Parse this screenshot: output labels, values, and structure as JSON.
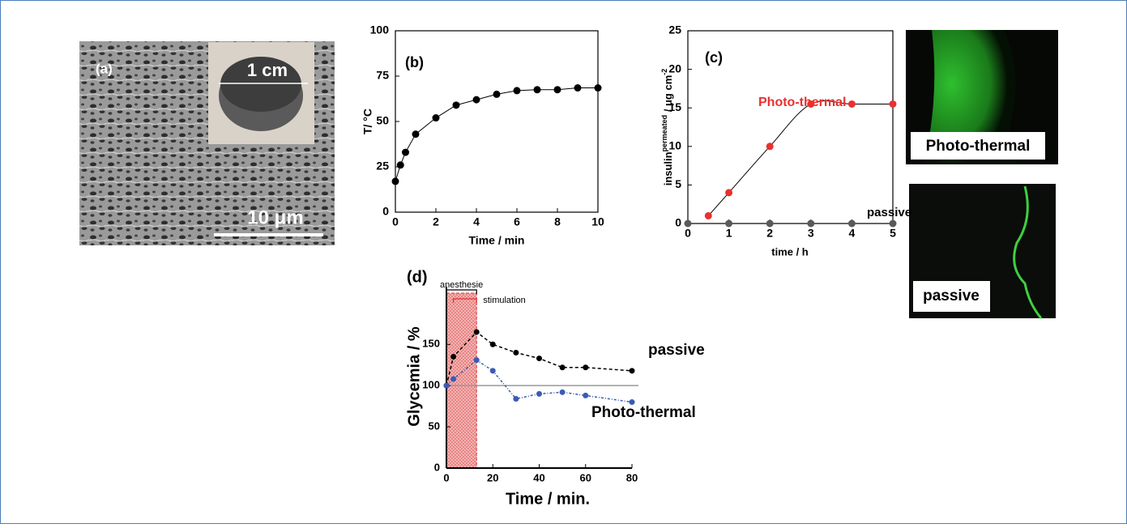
{
  "panel_a": {
    "label": "(a)",
    "inset_label": "1 cm",
    "scale_label": "10 μm"
  },
  "images": [
    {
      "label": "Photo-thermal"
    },
    {
      "label": "passive"
    }
  ],
  "chart_data": [
    {
      "type": "line",
      "title": "(b)",
      "x_label": "Time / min",
      "y_label": "T/ °C",
      "xlim": [
        0,
        10
      ],
      "xticks": [
        0,
        2,
        4,
        6,
        8,
        10
      ],
      "ylim": [
        0,
        100
      ],
      "yticks": [
        0,
        25,
        50,
        75,
        100
      ],
      "series": [
        {
          "color": "#000000",
          "x": [
            0,
            0.25,
            0.5,
            1,
            2,
            3,
            4,
            5,
            6,
            7,
            8,
            9,
            10
          ],
          "values": [
            17,
            26,
            33,
            43,
            52,
            59,
            62,
            65,
            67,
            67.5,
            67.5,
            68.5,
            68.5
          ]
        }
      ]
    },
    {
      "type": "line",
      "title": "(c)",
      "x_label": "time / h",
      "y_label": {
        "base": "insulin",
        "sup": "permeated",
        "unit": " / μg cm",
        "unit_sup": "-2"
      },
      "xlim": [
        0,
        5
      ],
      "xticks": [
        0,
        1,
        2,
        3,
        4,
        5
      ],
      "ylim": [
        0,
        25
      ],
      "yticks": [
        0,
        5,
        10,
        15,
        20,
        25
      ],
      "series": [
        {
          "name": "Photo-thermal",
          "color": "#e8312f",
          "x": [
            0.5,
            1,
            2,
            3,
            4,
            5
          ],
          "values": [
            1,
            4,
            10,
            15.5,
            15.5,
            15.5
          ]
        },
        {
          "name": "passive",
          "color": "#5a5a5a",
          "x": [
            0,
            1,
            2,
            3,
            4,
            5
          ],
          "values": [
            0,
            0,
            0,
            0,
            0,
            0
          ]
        }
      ]
    },
    {
      "type": "line",
      "title": "(d)",
      "x_label": "Time / min.",
      "y_label": "Glycemia / %",
      "xlim": [
        0,
        80
      ],
      "xticks": [
        0,
        20,
        40,
        60,
        80
      ],
      "ylim": [
        0,
        220
      ],
      "yticks": [
        0,
        50,
        100,
        150
      ],
      "reference_line": 100,
      "shaded_region": [
        0,
        13
      ],
      "annotations": [
        {
          "text": "anesthesie",
          "x": [
            0,
            13
          ]
        },
        {
          "text": "stimulation",
          "x": [
            3,
            13
          ]
        }
      ],
      "series": [
        {
          "name": "passive",
          "color": "#000000",
          "x": [
            0,
            3,
            13,
            20,
            30,
            40,
            50,
            60,
            80
          ],
          "values": [
            100,
            135,
            165,
            150,
            140,
            133,
            122,
            122,
            118
          ]
        },
        {
          "name": "Photo-thermal",
          "color": "#3a5bb5",
          "x": [
            0,
            3,
            13,
            20,
            30,
            40,
            50,
            60,
            80
          ],
          "values": [
            100,
            108,
            131,
            118,
            84,
            90,
            92,
            88,
            80
          ]
        }
      ]
    }
  ]
}
